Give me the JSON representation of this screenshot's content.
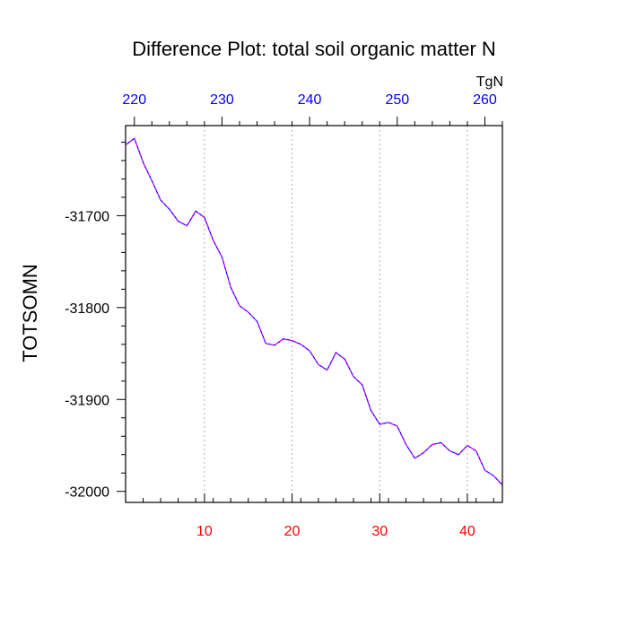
{
  "chart_data": {
    "type": "line",
    "title": "Difference Plot: total soil organic matter N",
    "units_label": "TgN",
    "ylabel": "TOTSOMN",
    "xlim": [
      1,
      44
    ],
    "ylim": [
      -32012,
      -31602
    ],
    "x_ticks_bottom": [
      10,
      20,
      30,
      40
    ],
    "x_ticks_top": [
      {
        "label": "220",
        "x": 2.0
      },
      {
        "label": "230",
        "x": 12.0
      },
      {
        "label": "240",
        "x": 22.0
      },
      {
        "label": "250",
        "x": 32.0
      },
      {
        "label": "260",
        "x": 42.0
      }
    ],
    "y_ticks": [
      -31700,
      -31800,
      -31900,
      -32000
    ],
    "y_minor_step": 20,
    "grid_x": [
      10,
      20,
      30,
      40
    ],
    "colors": {
      "bottom_axis": "#ff0000",
      "top_axis": "#0000ff",
      "line_primary": "#0000ff",
      "line_secondary": "#ff00ff"
    },
    "series": [
      {
        "x": [
          1,
          2,
          3,
          4,
          5,
          6,
          7,
          8,
          9,
          10,
          11,
          12,
          13,
          14,
          15,
          16,
          17,
          18,
          19,
          20,
          21,
          22,
          23,
          24,
          25,
          26,
          27,
          28,
          29,
          30,
          31,
          32,
          33,
          34,
          35,
          36,
          37,
          38,
          39,
          40,
          41,
          42,
          43,
          44
        ],
        "values": [
          -31623,
          -31616,
          -31642,
          -31662,
          -31683,
          -31693,
          -31706,
          -31711,
          -31695,
          -31702,
          -31727,
          -31745,
          -31778,
          -31798,
          -31805,
          -31815,
          -31839,
          -31841,
          -31834,
          -31836,
          -31840,
          -31847,
          -31862,
          -31868,
          -31849,
          -31856,
          -31875,
          -31884,
          -31912,
          -31927,
          -31925,
          -31929,
          -31949,
          -31964,
          -31958,
          -31949,
          -31947,
          -31956,
          -31960,
          -31950,
          -31956,
          -31977,
          -31983,
          -31993
        ]
      }
    ]
  }
}
